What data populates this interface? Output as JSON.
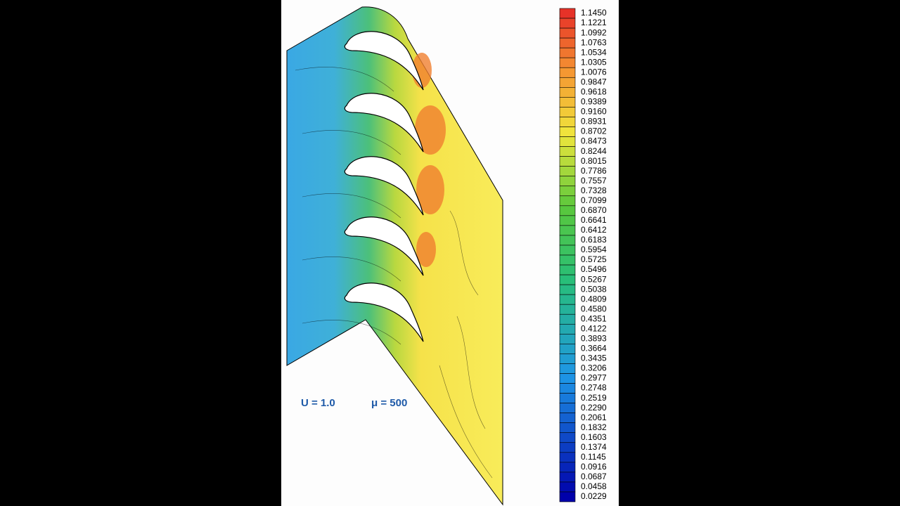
{
  "colorbar": {
    "labels": [
      "1.1450",
      "1.1221",
      "1.0992",
      "1.0763",
      "1.0534",
      "1.0305",
      "1.0076",
      "0.9847",
      "0.9618",
      "0.9389",
      "0.9160",
      "0.8931",
      "0.8702",
      "0.8473",
      "0.8244",
      "0.8015",
      "0.7786",
      "0.7557",
      "0.7328",
      "0.7099",
      "0.6870",
      "0.6641",
      "0.6412",
      "0.6183",
      "0.5954",
      "0.5725",
      "0.5496",
      "0.5267",
      "0.5038",
      "0.4809",
      "0.4580",
      "0.4351",
      "0.4122",
      "0.3893",
      "0.3664",
      "0.3435",
      "0.3206",
      "0.2977",
      "0.2748",
      "0.2519",
      "0.2290",
      "0.2061",
      "0.1832",
      "0.1603",
      "0.1374",
      "0.1145",
      "0.0916",
      "0.0687",
      "0.0458",
      "0.0229"
    ]
  },
  "annotations": {
    "velocity": "U = 1.0",
    "viscosity": "μ = 500"
  }
}
